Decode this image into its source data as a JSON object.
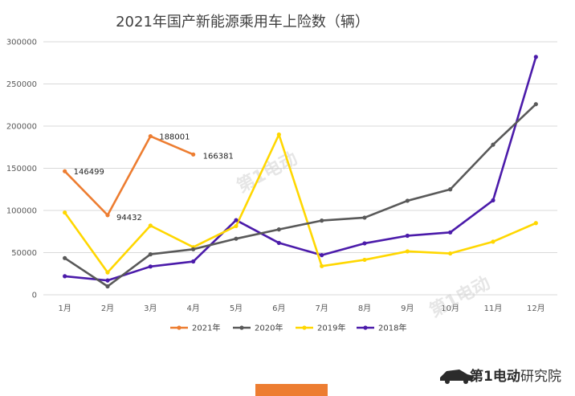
{
  "chart_data": {
    "type": "line",
    "title": "2021年国产新能源乘用车上险数（辆）",
    "categories": [
      "1月",
      "2月",
      "3月",
      "4月",
      "5月",
      "6月",
      "7月",
      "8月",
      "9月",
      "10月",
      "11月",
      "12月"
    ],
    "ylim": [
      0,
      300000
    ],
    "yticks": [
      0,
      50000,
      100000,
      150000,
      200000,
      250000,
      300000
    ],
    "ytick_labels": [
      "0",
      "50000",
      "100000",
      "150000",
      "200000",
      "250000",
      "300000"
    ],
    "grid": true,
    "legend_position": "bottom",
    "series": [
      {
        "name": "2021年",
        "color": "#ED7D31",
        "values": [
          146499,
          94432,
          188001,
          166381,
          null,
          null,
          null,
          null,
          null,
          null,
          null,
          null
        ],
        "data_labels": [
          "146499",
          "94432",
          "188001",
          "166381"
        ]
      },
      {
        "name": "2020年",
        "color": "#595959",
        "values": [
          43500,
          10000,
          48000,
          54000,
          66500,
          77500,
          88000,
          91500,
          111500,
          125000,
          178000,
          226000
        ]
      },
      {
        "name": "2019年",
        "color": "#FFD700",
        "values": [
          97500,
          26500,
          82000,
          56500,
          81500,
          190000,
          34000,
          41500,
          51500,
          49000,
          63000,
          85000
        ]
      },
      {
        "name": "2018年",
        "color": "#4B1BAA",
        "values": [
          22000,
          17000,
          33500,
          39500,
          88500,
          61500,
          47000,
          61000,
          70000,
          74000,
          112000,
          282000
        ]
      }
    ]
  },
  "watermark": {
    "brand": "第1电动",
    "url": "www.D1EV.com"
  },
  "footer": {
    "brand": "第1电动",
    "separator": "·",
    "research": "研究院",
    "accent_color": "#ED7D31"
  }
}
